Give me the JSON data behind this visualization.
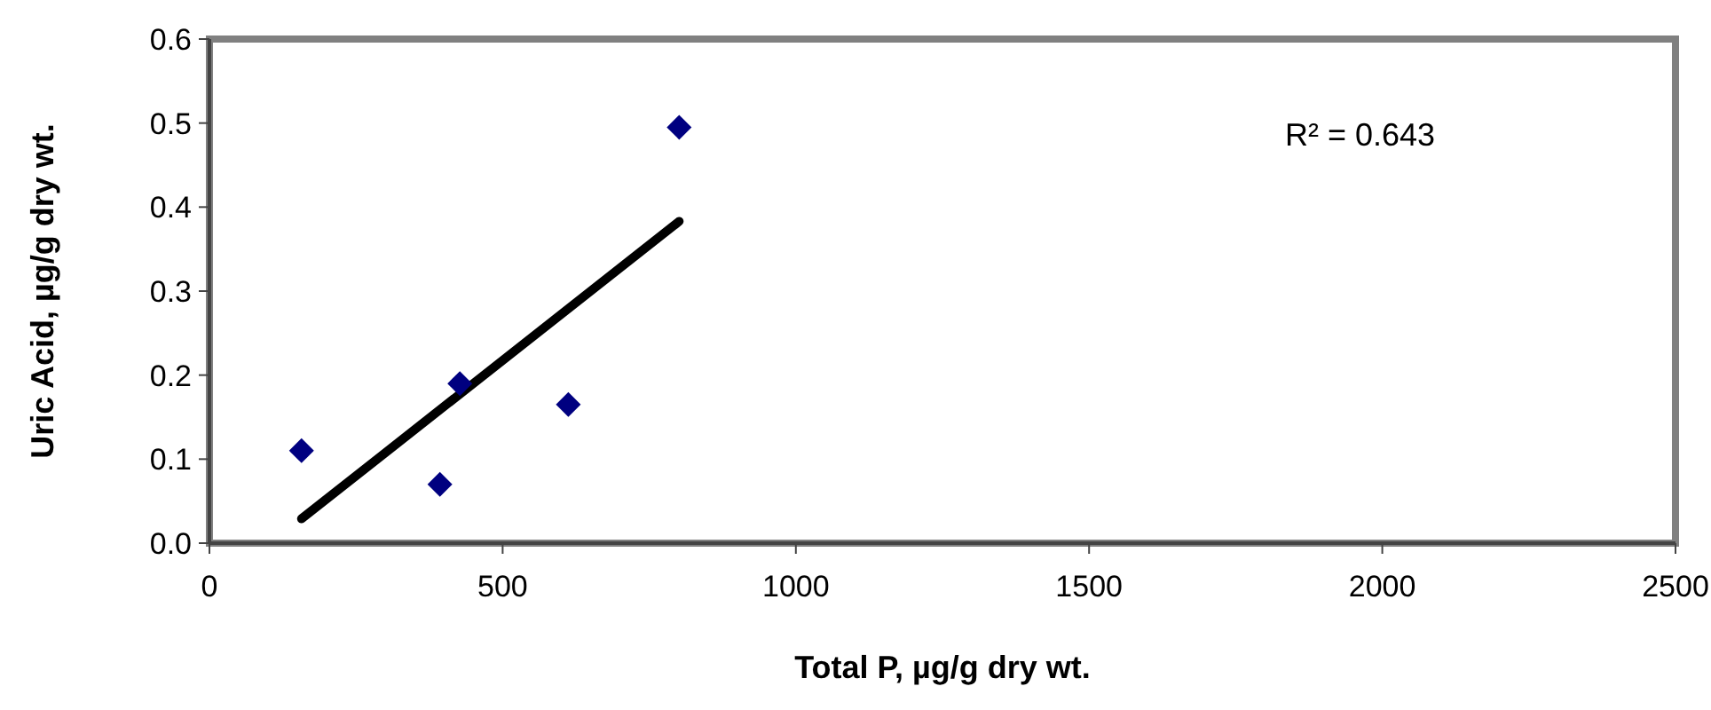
{
  "chart_data": {
    "type": "scatter",
    "xlabel": "Total P, µg/g dry wt.",
    "ylabel": "Uric Acid, µg/g dry wt.",
    "xlim": [
      0,
      2500
    ],
    "xticks": [
      0,
      500,
      1000,
      1500,
      2000,
      2500
    ],
    "ylim": [
      0,
      0.6
    ],
    "yticks": [
      {
        "value": 0,
        "label": "0.0"
      },
      {
        "value": 0.1,
        "label": "0.1"
      },
      {
        "value": 0.2,
        "label": "0.2"
      },
      {
        "value": 0.3,
        "label": "0.3"
      },
      {
        "value": 0.4,
        "label": "0.4"
      },
      {
        "value": 0.5,
        "label": "0.5"
      },
      {
        "value": 0.6,
        "label": "0.6"
      }
    ],
    "grid": false,
    "series": [
      {
        "marker": "diamond",
        "color": "#000080",
        "x": [
          157,
          393,
          427,
          612,
          801
        ],
        "values": [
          0.11,
          0.07,
          0.19,
          0.165,
          0.495
        ]
      },
      {
        "type": "line",
        "color": "#000000",
        "x": [
          157,
          801
        ],
        "values": [
          0.029,
          0.383
        ]
      }
    ],
    "annotations": [
      "R² = 0.643"
    ]
  }
}
